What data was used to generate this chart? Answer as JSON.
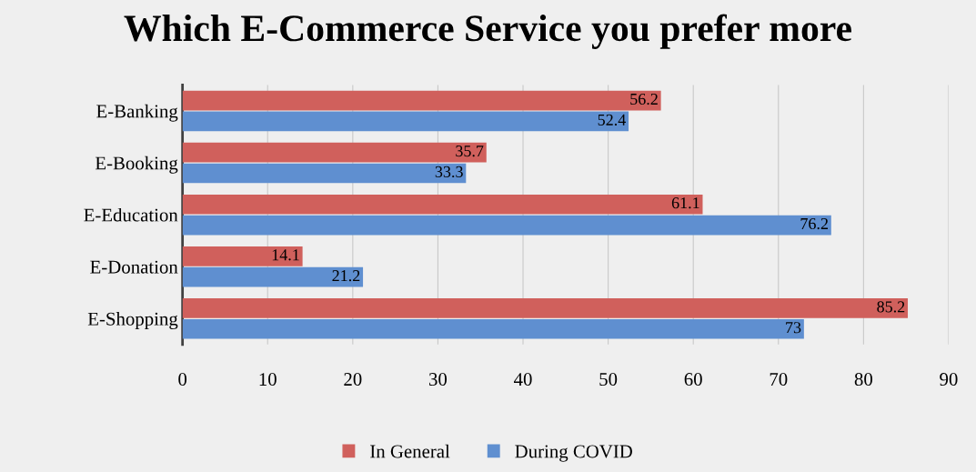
{
  "chart_data": {
    "type": "bar",
    "orientation": "horizontal",
    "title": "Which E-Commerce Service you prefer more",
    "categories": [
      "E-Banking",
      "E-Booking",
      "E-Education",
      "E-Donation",
      "E-Shopping"
    ],
    "series": [
      {
        "name": "In General",
        "color": "#d0605c",
        "values": [
          56.2,
          35.7,
          61.1,
          14.1,
          85.2
        ]
      },
      {
        "name": "During COVID",
        "color": "#5f8fd0",
        "values": [
          52.4,
          33.3,
          76.2,
          21.2,
          73
        ]
      }
    ],
    "xlim": [
      0,
      90
    ],
    "xticks": [
      0,
      10,
      20,
      30,
      40,
      50,
      60,
      70,
      80,
      90
    ],
    "grid": "x",
    "legend": "bottom",
    "data_labels": true
  }
}
